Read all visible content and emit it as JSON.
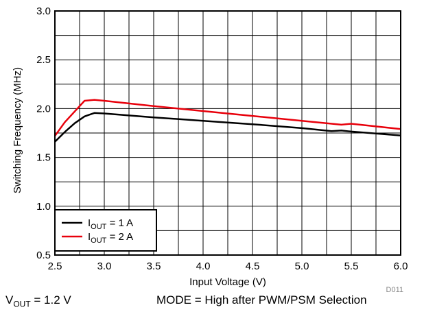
{
  "chart_data": {
    "type": "line",
    "ylabel": "Switching Frequency (MHz)",
    "xlabel": "Input Voltage (V)",
    "xlim": [
      2.5,
      6.0
    ],
    "ylim": [
      0.5,
      3.0
    ],
    "x_ticks": [
      "2.5",
      "3.0",
      "3.5",
      "4.0",
      "4.5",
      "5.0",
      "5.5",
      "6.0"
    ],
    "y_ticks": [
      "0.5",
      "1.0",
      "1.5",
      "2.0",
      "2.5",
      "3.0"
    ],
    "grid": true,
    "legend_position": "bottom-left",
    "series": [
      {
        "name": "IOUT = 1 A",
        "legend_label": {
          "prefix": "I",
          "sub": "OUT",
          "suffix": " = 1 A"
        },
        "color": "#000000",
        "x": [
          2.5,
          2.6,
          2.7,
          2.8,
          2.9,
          3.0,
          3.5,
          4.0,
          4.5,
          5.0,
          5.3,
          5.4,
          5.5,
          6.0
        ],
        "y": [
          1.66,
          1.76,
          1.85,
          1.92,
          1.955,
          1.95,
          1.91,
          1.875,
          1.84,
          1.8,
          1.77,
          1.775,
          1.765,
          1.725
        ]
      },
      {
        "name": "IOUT = 2 A",
        "legend_label": {
          "prefix": "I",
          "sub": "OUT",
          "suffix": " = 2 A"
        },
        "color": "#e8000b",
        "x": [
          2.5,
          2.6,
          2.7,
          2.8,
          2.9,
          3.0,
          3.5,
          4.0,
          4.5,
          5.0,
          5.4,
          5.5,
          6.0
        ],
        "y": [
          1.72,
          1.86,
          1.97,
          2.08,
          2.09,
          2.08,
          2.025,
          1.975,
          1.925,
          1.875,
          1.835,
          1.845,
          1.79
        ]
      }
    ],
    "figure_id": "D011",
    "conditions": [
      {
        "prefix": "V",
        "sub": "OUT",
        "suffix": " = 1.2 V"
      },
      {
        "prefix": "MODE = High after PWM/PSM Selection",
        "sub": "",
        "suffix": ""
      }
    ]
  }
}
